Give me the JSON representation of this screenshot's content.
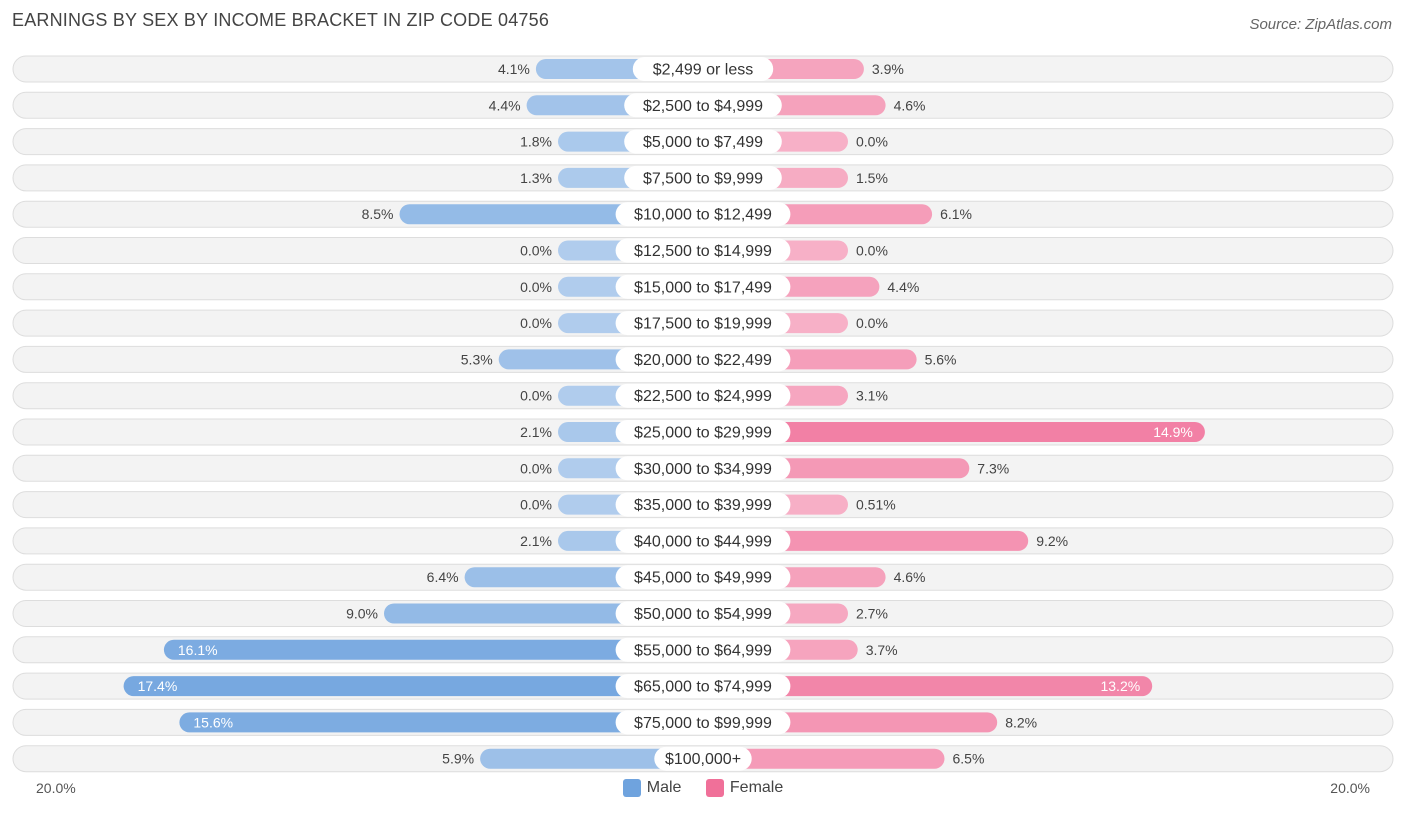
{
  "chart_data": {
    "type": "bar",
    "orientation": "horizontal-diverging",
    "title": "EARNINGS BY SEX BY INCOME BRACKET IN ZIP CODE 04756",
    "source": "Source: ZipAtlas.com",
    "categories": [
      "$2,499 or less",
      "$2,500 to $4,999",
      "$5,000 to $7,499",
      "$7,500 to $9,999",
      "$10,000 to $12,499",
      "$12,500 to $14,999",
      "$15,000 to $17,499",
      "$17,500 to $19,999",
      "$20,000 to $22,499",
      "$22,500 to $24,999",
      "$25,000 to $29,999",
      "$30,000 to $34,999",
      "$35,000 to $39,999",
      "$40,000 to $44,999",
      "$45,000 to $49,999",
      "$50,000 to $54,999",
      "$55,000 to $64,999",
      "$65,000 to $74,999",
      "$75,000 to $99,999",
      "$100,000+"
    ],
    "series": [
      {
        "name": "Male",
        "color": "#6fa3de",
        "values": [
          4.1,
          4.4,
          1.8,
          1.3,
          8.5,
          0.0,
          0.0,
          0.0,
          5.3,
          0.0,
          2.1,
          0.0,
          0.0,
          2.1,
          6.4,
          9.0,
          16.1,
          17.4,
          15.6,
          5.9
        ],
        "labels": [
          "4.1%",
          "4.4%",
          "1.8%",
          "1.3%",
          "8.5%",
          "0.0%",
          "0.0%",
          "0.0%",
          "5.3%",
          "0.0%",
          "2.1%",
          "0.0%",
          "0.0%",
          "2.1%",
          "6.4%",
          "9.0%",
          "16.1%",
          "17.4%",
          "15.6%",
          "5.9%"
        ]
      },
      {
        "name": "Female",
        "color": "#f07099",
        "values": [
          3.9,
          4.6,
          0.0,
          1.5,
          6.1,
          0.0,
          4.4,
          0.0,
          5.6,
          3.1,
          14.9,
          7.3,
          0.51,
          9.2,
          4.6,
          2.7,
          3.7,
          13.2,
          8.2,
          6.5
        ],
        "labels": [
          "3.9%",
          "4.6%",
          "0.0%",
          "1.5%",
          "6.1%",
          "0.0%",
          "4.4%",
          "0.0%",
          "5.6%",
          "3.1%",
          "14.9%",
          "7.3%",
          "0.51%",
          "9.2%",
          "4.6%",
          "2.7%",
          "3.7%",
          "13.2%",
          "8.2%",
          "6.5%"
        ]
      }
    ],
    "xlim": [
      -20.0,
      20.0
    ],
    "axis_labels": {
      "left": "20.0%",
      "right": "20.0%"
    },
    "legend": [
      "Male",
      "Female"
    ],
    "legend_position": "bottom-center"
  }
}
